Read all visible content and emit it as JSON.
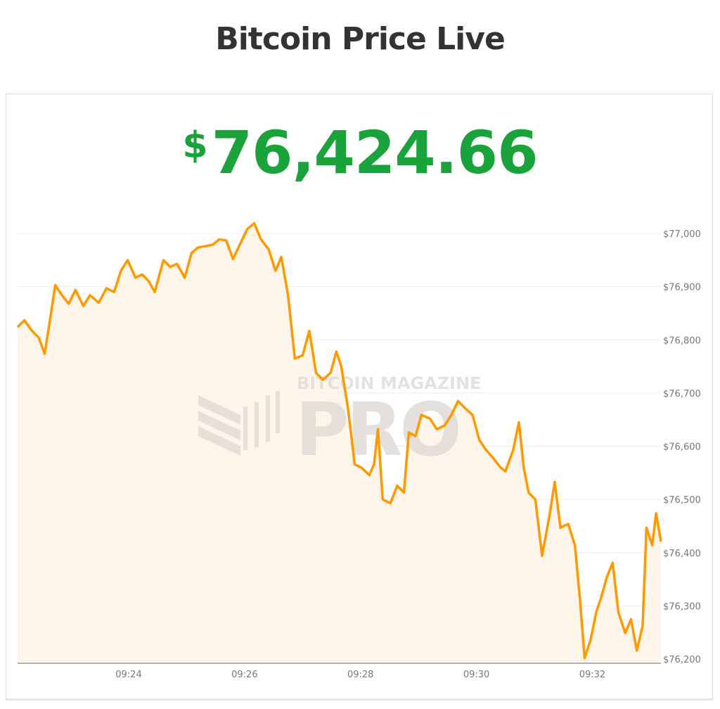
{
  "header": {
    "title": "Bitcoin Price Live"
  },
  "price": {
    "currency": "$",
    "value": "76,424.66",
    "color": "#1aa33a"
  },
  "watermark": {
    "line1": "BITCOIN MAGAZINE",
    "line2": "PRO"
  },
  "chart_data": {
    "type": "area",
    "title": "",
    "xlabel": "",
    "ylabel": "",
    "line_color": "#ff9900",
    "fill_color": "#fdf5ea",
    "grid": true,
    "y_axis_position": "right",
    "ylim": [
      76200,
      77000
    ],
    "xlim": [
      "09:22:05",
      "09:33:11"
    ],
    "y_ticks": [
      {
        "value": 77000,
        "label": "$77,000"
      },
      {
        "value": 76900,
        "label": "$76,900"
      },
      {
        "value": 76800,
        "label": "$76,800"
      },
      {
        "value": 76700,
        "label": "$76,700"
      },
      {
        "value": 76600,
        "label": "$76,600"
      },
      {
        "value": 76500,
        "label": "$76,500"
      },
      {
        "value": 76400,
        "label": "$76,400"
      },
      {
        "value": 76300,
        "label": "$76,300"
      },
      {
        "value": 76200,
        "label": "$76,200"
      }
    ],
    "x_ticks": [
      {
        "value": "09:24:00",
        "label": "09:24"
      },
      {
        "value": "09:26:00",
        "label": "09:26"
      },
      {
        "value": "09:28:00",
        "label": "09:28"
      },
      {
        "value": "09:30:00",
        "label": "09:30"
      },
      {
        "value": "09:32:00",
        "label": "09:32"
      }
    ],
    "points": [
      [
        "09:22:05",
        76824
      ],
      [
        "09:22:12",
        76837
      ],
      [
        "09:22:20",
        76817
      ],
      [
        "09:22:27",
        76804
      ],
      [
        "09:22:33",
        76774
      ],
      [
        "09:22:38",
        76831
      ],
      [
        "09:22:44",
        76903
      ],
      [
        "09:22:51",
        76884
      ],
      [
        "09:22:58",
        76868
      ],
      [
        "09:23:05",
        76894
      ],
      [
        "09:23:13",
        76864
      ],
      [
        "09:23:20",
        76884
      ],
      [
        "09:23:29",
        76870
      ],
      [
        "09:23:37",
        76897
      ],
      [
        "09:23:45",
        76890
      ],
      [
        "09:23:52",
        76930
      ],
      [
        "09:23:59",
        76950
      ],
      [
        "09:24:07",
        76917
      ],
      [
        "09:24:14",
        76923
      ],
      [
        "09:24:21",
        76910
      ],
      [
        "09:24:27",
        76890
      ],
      [
        "09:24:36",
        76950
      ],
      [
        "09:24:43",
        76937
      ],
      [
        "09:24:50",
        76943
      ],
      [
        "09:24:58",
        76917
      ],
      [
        "09:25:05",
        76963
      ],
      [
        "09:25:12",
        76974
      ],
      [
        "09:25:19",
        76976
      ],
      [
        "09:25:27",
        76979
      ],
      [
        "09:25:34",
        76989
      ],
      [
        "09:25:41",
        76987
      ],
      [
        "09:25:48",
        76952
      ],
      [
        "09:25:56",
        76983
      ],
      [
        "09:26:03",
        77009
      ],
      [
        "09:26:10",
        77019
      ],
      [
        "09:26:17",
        76989
      ],
      [
        "09:26:25",
        76970
      ],
      [
        "09:26:32",
        76930
      ],
      [
        "09:26:38",
        76956
      ],
      [
        "09:26:45",
        76884
      ],
      [
        "09:26:52",
        76765
      ],
      [
        "09:27:00",
        76771
      ],
      [
        "09:27:07",
        76817
      ],
      [
        "09:27:14",
        76738
      ],
      [
        "09:27:21",
        76725
      ],
      [
        "09:27:29",
        76738
      ],
      [
        "09:27:35",
        76778
      ],
      [
        "09:27:40",
        76751
      ],
      [
        "09:27:47",
        76672
      ],
      [
        "09:27:54",
        76566
      ],
      [
        "09:28:01",
        76560
      ],
      [
        "09:28:09",
        76546
      ],
      [
        "09:28:14",
        76566
      ],
      [
        "09:28:18",
        76632
      ],
      [
        "09:28:23",
        76500
      ],
      [
        "09:28:31",
        76493
      ],
      [
        "09:28:38",
        76526
      ],
      [
        "09:28:45",
        76513
      ],
      [
        "09:28:50",
        76626
      ],
      [
        "09:28:57",
        76619
      ],
      [
        "09:29:03",
        76659
      ],
      [
        "09:29:12",
        76652
      ],
      [
        "09:29:19",
        76632
      ],
      [
        "09:29:27",
        76639
      ],
      [
        "09:29:34",
        76659
      ],
      [
        "09:29:41",
        76685
      ],
      [
        "09:29:48",
        76672
      ],
      [
        "09:29:56",
        76659
      ],
      [
        "09:30:03",
        76612
      ],
      [
        "09:30:10",
        76593
      ],
      [
        "09:30:17",
        76579
      ],
      [
        "09:30:25",
        76560
      ],
      [
        "09:30:30",
        76553
      ],
      [
        "09:30:38",
        76593
      ],
      [
        "09:30:44",
        76645
      ],
      [
        "09:30:49",
        76560
      ],
      [
        "09:30:54",
        76513
      ],
      [
        "09:31:01",
        76500
      ],
      [
        "09:31:08",
        76394
      ],
      [
        "09:31:16",
        76474
      ],
      [
        "09:31:21",
        76533
      ],
      [
        "09:31:27",
        76447
      ],
      [
        "09:31:35",
        76454
      ],
      [
        "09:31:42",
        76414
      ],
      [
        "09:31:47",
        76315
      ],
      [
        "09:31:52",
        76202
      ],
      [
        "09:31:58",
        76235
      ],
      [
        "09:32:04",
        76288
      ],
      [
        "09:32:09",
        76315
      ],
      [
        "09:32:15",
        76354
      ],
      [
        "09:32:21",
        76381
      ],
      [
        "09:32:27",
        76288
      ],
      [
        "09:32:34",
        76249
      ],
      [
        "09:32:40",
        76275
      ],
      [
        "09:32:46",
        76216
      ],
      [
        "09:32:52",
        76262
      ],
      [
        "09:32:56",
        76447
      ],
      [
        "09:33:02",
        76414
      ],
      [
        "09:33:06",
        76474
      ],
      [
        "09:33:11",
        76421
      ]
    ]
  }
}
